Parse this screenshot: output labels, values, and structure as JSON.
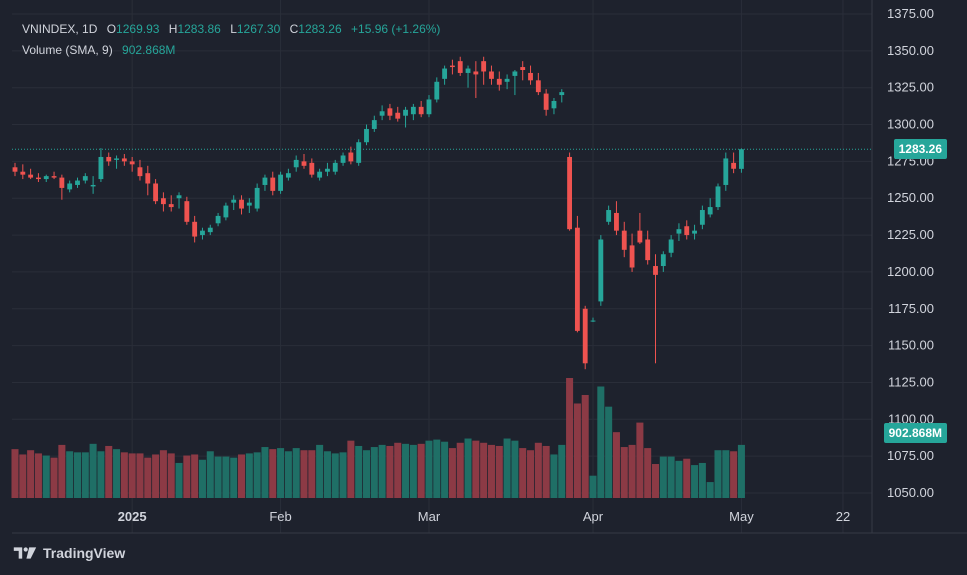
{
  "symbol": "VNINDEX",
  "interval": "1D",
  "ohlc": {
    "o_label": "O",
    "o": "1269.93",
    "h_label": "H",
    "h": "1283.86",
    "l_label": "L",
    "l": "1267.30",
    "c_label": "C",
    "c": "1283.26",
    "change": "+15.96 (+1.26%)"
  },
  "volume_indicator": {
    "label": "Volume (SMA, 9)",
    "value": "902.868M"
  },
  "price_badge": "1283.26",
  "volume_badge": "902.868M",
  "brand": "TradingView",
  "colors": {
    "background": "#1e222d",
    "up": "#26a69a",
    "down": "#ef5350",
    "volume_up": "#1f6f66",
    "volume_down": "#8c3a45",
    "grid": "#2a2e39",
    "text": "#d1d4dc"
  },
  "chart_data": {
    "type": "candlestick",
    "title": "VNINDEX, 1D",
    "y_axis": {
      "position": "right",
      "ticks": [
        1050,
        1075,
        1100,
        1125,
        1150,
        1175,
        1200,
        1225,
        1250,
        1275,
        1300,
        1325,
        1350,
        1375
      ],
      "tick_labels": [
        "1050.00",
        "1075.00",
        "1100.00",
        "1125.00",
        "1150.00",
        "1175.00",
        "1200.00",
        "1225.00",
        "1250.00",
        "1275.00",
        "1300.00",
        "1325.00",
        "1350.00",
        "1375.00"
      ],
      "range": [
        1047,
        1378
      ]
    },
    "x_axis": {
      "labels": [
        {
          "text": "2025",
          "at_bar": 15,
          "bold": true
        },
        {
          "text": "Feb",
          "at_bar": 34
        },
        {
          "text": "Mar",
          "at_bar": 53
        },
        {
          "text": "Apr",
          "at_bar": 74
        },
        {
          "text": "May",
          "at_bar": 93
        },
        {
          "text": "22",
          "at_bar": 106
        }
      ],
      "total_slots": 109
    },
    "last_price_line": 1283.26,
    "grid": true,
    "series": [
      {
        "name": "VNINDEX",
        "candles": [
          [
            1271,
            1274,
            1265,
            1268
          ],
          [
            1268,
            1273,
            1263,
            1266
          ],
          [
            1266,
            1270,
            1263,
            1264
          ],
          [
            1264,
            1267,
            1261,
            1263
          ],
          [
            1263,
            1266,
            1261,
            1265
          ],
          [
            1265,
            1268,
            1263,
            1264
          ],
          [
            1264,
            1266,
            1249,
            1257
          ],
          [
            1256,
            1262,
            1254,
            1260
          ],
          [
            1259,
            1264,
            1257,
            1262
          ],
          [
            1262,
            1267,
            1260,
            1265
          ],
          [
            1258,
            1265,
            1253,
            1259
          ],
          [
            1263,
            1284,
            1261,
            1278
          ],
          [
            1278,
            1281,
            1272,
            1275
          ],
          [
            1276,
            1279,
            1270,
            1277
          ],
          [
            1277,
            1280,
            1272,
            1275
          ],
          [
            1275,
            1278,
            1268,
            1273
          ],
          [
            1271,
            1276,
            1262,
            1265
          ],
          [
            1267,
            1272,
            1252,
            1260
          ],
          [
            1260,
            1263,
            1246,
            1248
          ],
          [
            1250,
            1254,
            1241,
            1246
          ],
          [
            1246,
            1252,
            1241,
            1244
          ],
          [
            1250,
            1254,
            1243,
            1252
          ],
          [
            1248,
            1251,
            1232,
            1234
          ],
          [
            1234,
            1238,
            1220,
            1224
          ],
          [
            1225,
            1230,
            1222,
            1228
          ],
          [
            1227,
            1232,
            1225,
            1230
          ],
          [
            1233,
            1240,
            1231,
            1238
          ],
          [
            1237,
            1247,
            1235,
            1245
          ],
          [
            1247,
            1252,
            1242,
            1249
          ],
          [
            1249,
            1252,
            1239,
            1243
          ],
          [
            1245,
            1250,
            1240,
            1247
          ],
          [
            1243,
            1260,
            1241,
            1257
          ],
          [
            1259,
            1266,
            1255,
            1264
          ],
          [
            1264,
            1268,
            1252,
            1255
          ],
          [
            1255,
            1268,
            1253,
            1266
          ],
          [
            1264,
            1270,
            1262,
            1267
          ],
          [
            1271,
            1279,
            1268,
            1276
          ],
          [
            1275,
            1280,
            1270,
            1272
          ],
          [
            1274,
            1277,
            1264,
            1266
          ],
          [
            1264,
            1270,
            1262,
            1268
          ],
          [
            1268,
            1274,
            1265,
            1270
          ],
          [
            1268,
            1276,
            1266,
            1274
          ],
          [
            1274,
            1281,
            1272,
            1279
          ],
          [
            1281,
            1285,
            1273,
            1275
          ],
          [
            1274,
            1290,
            1272,
            1288
          ],
          [
            1288,
            1300,
            1286,
            1297
          ],
          [
            1297,
            1306,
            1295,
            1303
          ],
          [
            1306,
            1313,
            1303,
            1309
          ],
          [
            1311,
            1314,
            1303,
            1306
          ],
          [
            1308,
            1312,
            1302,
            1304
          ],
          [
            1306,
            1312,
            1298,
            1310
          ],
          [
            1307,
            1314,
            1303,
            1312
          ],
          [
            1312,
            1316,
            1305,
            1307
          ],
          [
            1307,
            1320,
            1305,
            1317
          ],
          [
            1317,
            1332,
            1315,
            1329
          ],
          [
            1331,
            1340,
            1327,
            1338
          ],
          [
            1340,
            1344,
            1334,
            1339
          ],
          [
            1343,
            1346,
            1333,
            1335
          ],
          [
            1335,
            1340,
            1325,
            1338
          ],
          [
            1336,
            1343,
            1318,
            1334
          ],
          [
            1343,
            1346,
            1327,
            1336
          ],
          [
            1336,
            1340,
            1327,
            1331
          ],
          [
            1331,
            1336,
            1323,
            1327
          ],
          [
            1329,
            1334,
            1324,
            1331
          ],
          [
            1333,
            1337,
            1320,
            1336
          ],
          [
            1339,
            1343,
            1330,
            1337
          ],
          [
            1335,
            1340,
            1327,
            1330
          ],
          [
            1330,
            1335,
            1320,
            1322
          ],
          [
            1321,
            1324,
            1306,
            1310
          ],
          [
            1311,
            1318,
            1307,
            1316
          ],
          [
            1320,
            1324,
            1315,
            1322
          ],
          [
            1278,
            1281,
            1228,
            1229
          ],
          [
            1230,
            1238,
            1159,
            1160
          ],
          [
            1175,
            1177,
            1134,
            1138
          ],
          [
            1167,
            1169,
            1166,
            1167
          ],
          [
            1180,
            1225,
            1177,
            1222
          ],
          [
            1234,
            1245,
            1232,
            1242
          ],
          [
            1240,
            1248,
            1225,
            1228
          ],
          [
            1228,
            1234,
            1210,
            1215
          ],
          [
            1218,
            1226,
            1200,
            1203
          ],
          [
            1228,
            1240,
            1219,
            1220
          ],
          [
            1222,
            1228,
            1205,
            1208
          ],
          [
            1204,
            1212,
            1138,
            1198
          ],
          [
            1204,
            1214,
            1200,
            1212
          ],
          [
            1213,
            1225,
            1210,
            1222
          ],
          [
            1226,
            1233,
            1221,
            1229
          ],
          [
            1231,
            1235,
            1222,
            1225
          ],
          [
            1226,
            1232,
            1222,
            1228
          ],
          [
            1232,
            1245,
            1229,
            1242
          ],
          [
            1239,
            1250,
            1237,
            1244
          ],
          [
            1244,
            1260,
            1242,
            1258
          ],
          [
            1259,
            1281,
            1255,
            1277
          ],
          [
            1274,
            1281,
            1267,
            1270
          ],
          [
            1269.93,
            1283.86,
            1267.3,
            1283.26
          ]
        ],
        "volume": [
          46,
          41,
          45,
          42,
          40,
          38,
          50,
          44,
          43,
          43,
          51,
          44,
          49,
          46,
          43,
          42,
          42,
          38,
          41,
          45,
          42,
          33,
          40,
          41,
          36,
          44,
          39,
          39,
          38,
          41,
          42,
          43,
          48,
          46,
          47,
          44,
          47,
          45,
          45,
          50,
          44,
          42,
          43,
          54,
          49,
          45,
          48,
          50,
          49,
          52,
          51,
          50,
          51,
          54,
          55,
          53,
          47,
          52,
          56,
          54,
          52,
          50,
          49,
          56,
          54,
          47,
          45,
          52,
          49,
          41,
          50,
          113,
          89,
          97,
          21,
          105,
          86,
          62,
          48,
          50,
          71,
          47,
          32,
          39,
          39,
          35,
          37,
          31,
          33,
          15,
          45,
          45,
          44,
          50
        ]
      }
    ]
  }
}
